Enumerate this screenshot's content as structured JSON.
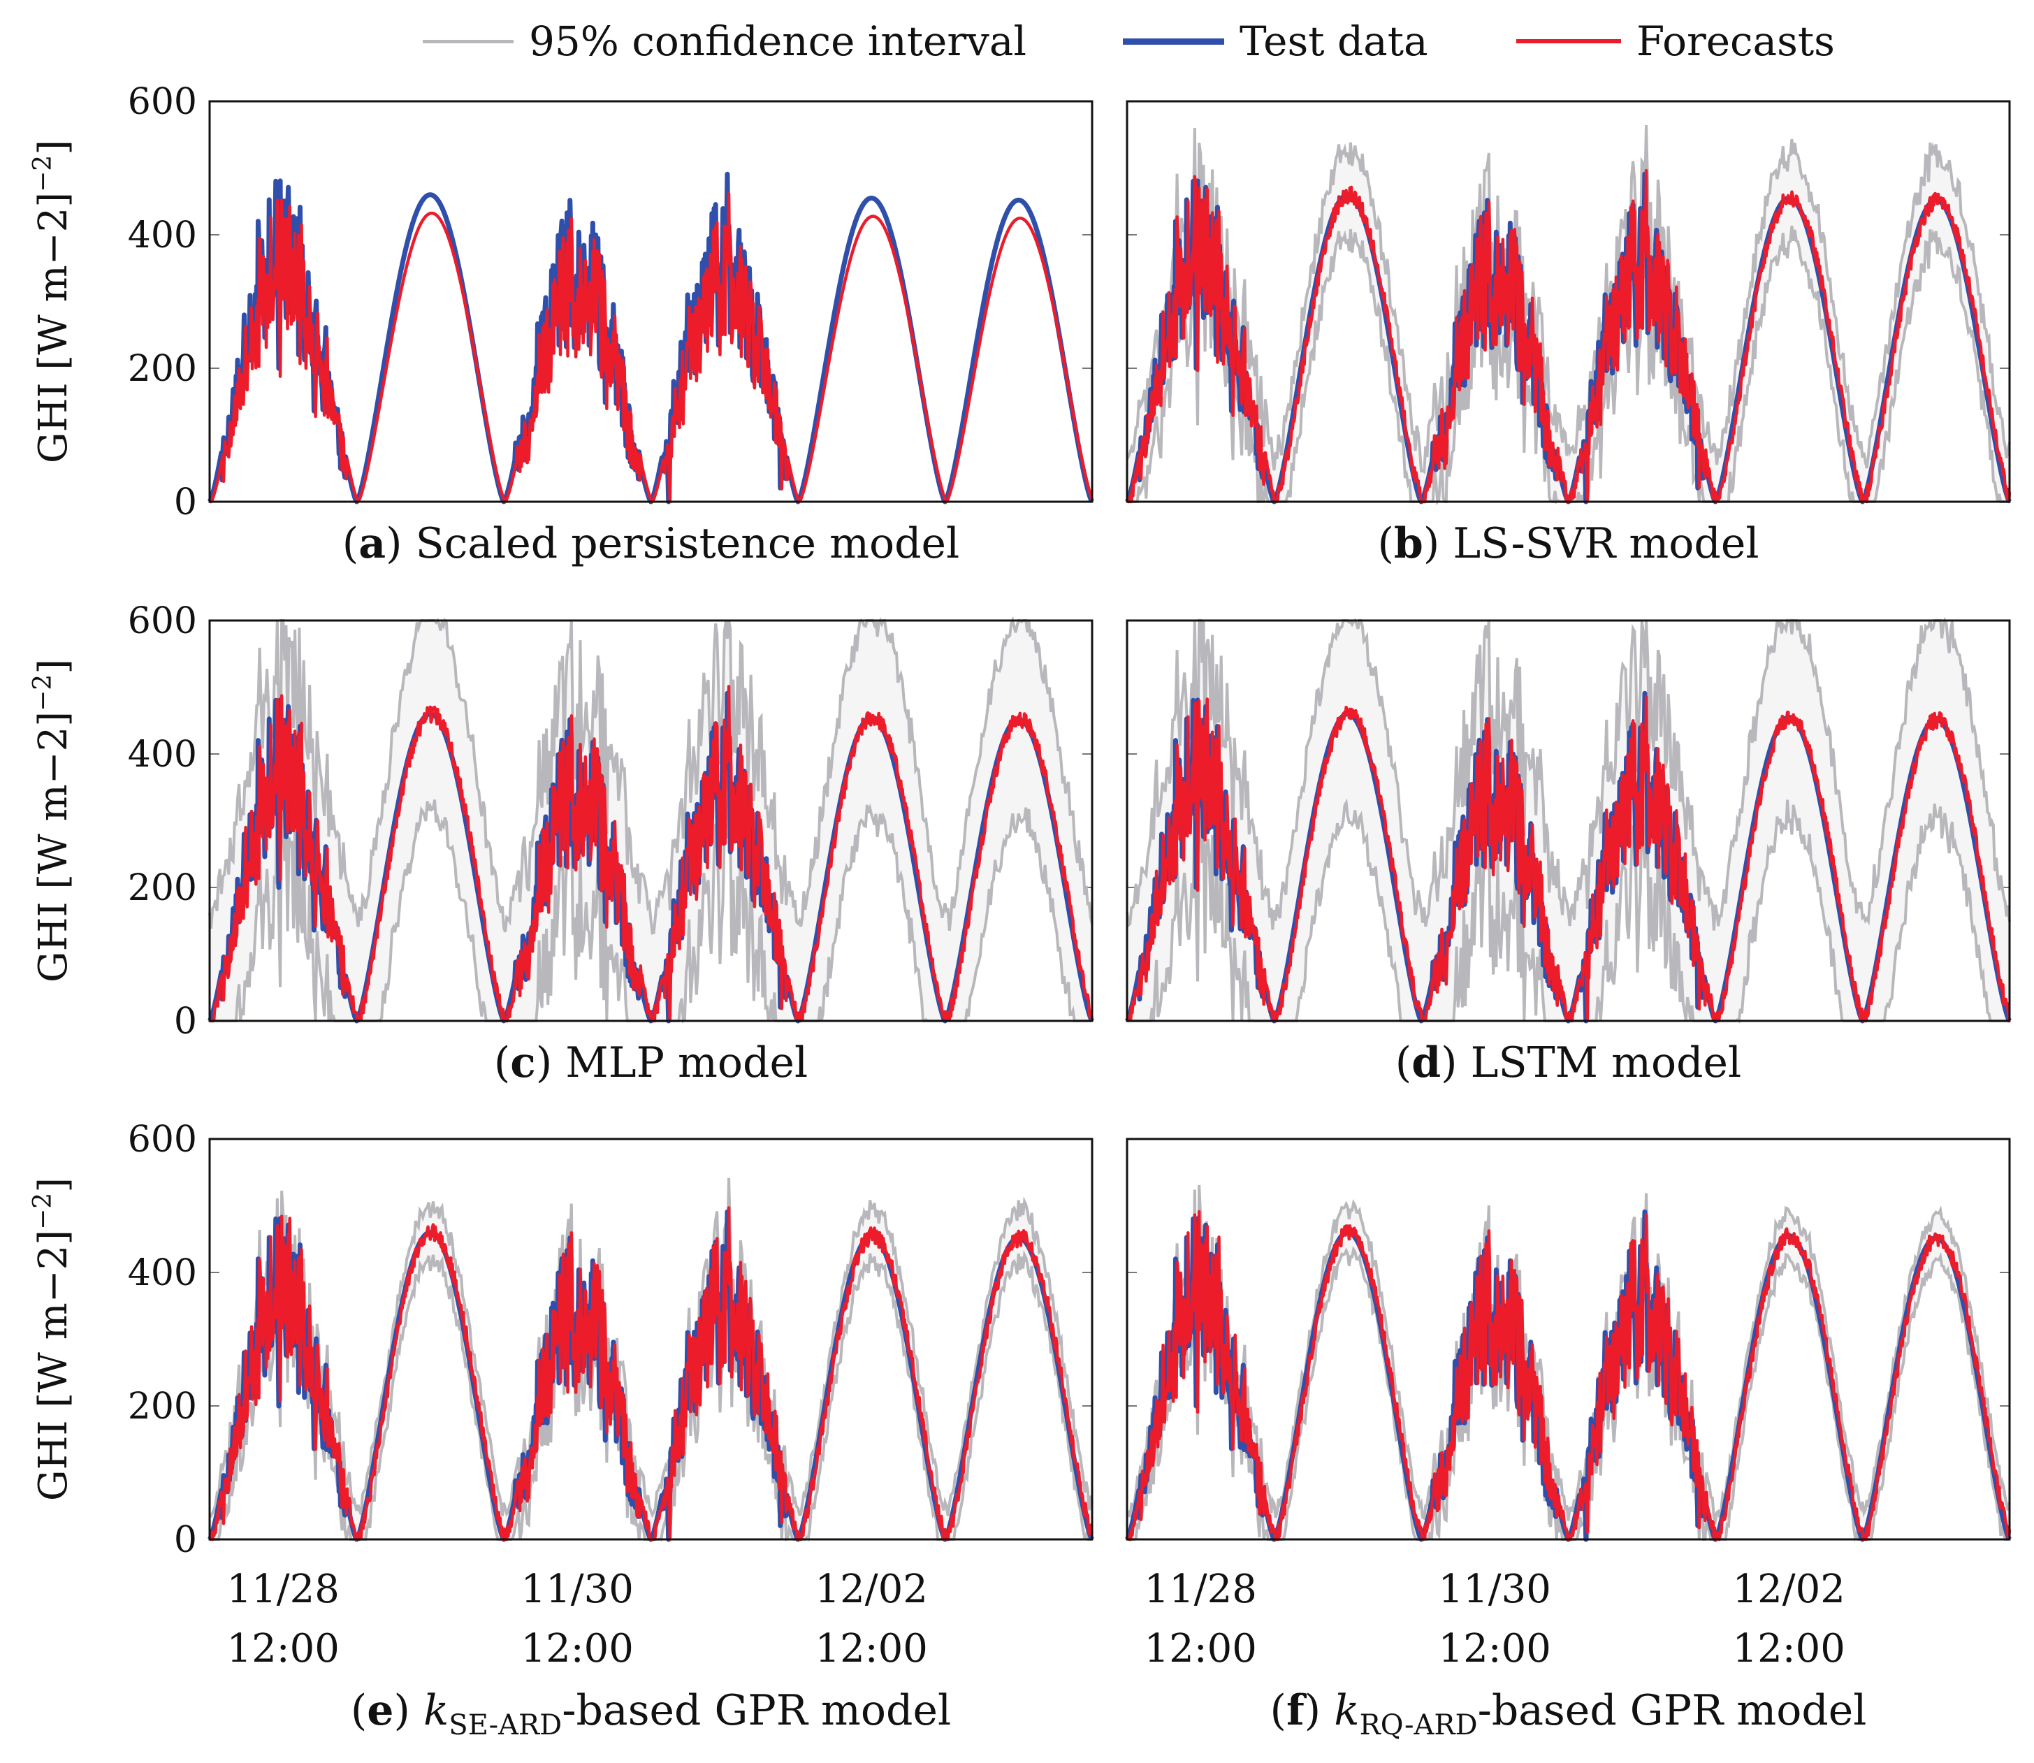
{
  "legend": [
    {
      "label": "95% confidence interval",
      "color": "#b8b8bc"
    },
    {
      "label": "Test data",
      "color": "#2f4faa"
    },
    {
      "label": "Forecasts",
      "color": "#ec1c2a"
    }
  ],
  "x_tick_labels": [
    {
      "date": "11/28",
      "time": "12:00"
    },
    {
      "date": "11/30",
      "time": "12:00"
    },
    {
      "date": "12/02",
      "time": "12:00"
    }
  ],
  "chart_data": [
    {
      "id": "a",
      "type": "line",
      "caption_bold": "a",
      "caption_text": "Scaled persistence model",
      "ylabel": "GHI [W m−2]",
      "ylim": [
        0,
        600
      ],
      "yticks": [
        "0",
        "200",
        "400",
        "600"
      ],
      "xrange_days": [
        0,
        6
      ],
      "has_ci": false,
      "series": [
        {
          "name": "Test data",
          "color": "#2f4faa"
        },
        {
          "name": "Forecasts",
          "color": "#ec1c2a"
        }
      ]
    },
    {
      "id": "b",
      "type": "line",
      "caption_bold": "b",
      "caption_text": "LS-SVR model",
      "ylabel": "",
      "ylim": [
        0,
        600
      ],
      "yticks": [],
      "xrange_days": [
        0,
        6
      ],
      "has_ci": true,
      "ci_halfwidth": 65,
      "series": [
        {
          "name": "Test data",
          "color": "#2f4faa"
        },
        {
          "name": "Forecasts",
          "color": "#ec1c2a"
        }
      ]
    },
    {
      "id": "c",
      "type": "line",
      "caption_bold": "c",
      "caption_text": "MLP model",
      "ylabel": "GHI [W m−2]",
      "ylim": [
        0,
        600
      ],
      "yticks": [
        "0",
        "200",
        "400",
        "600"
      ],
      "xrange_days": [
        0,
        6
      ],
      "has_ci": true,
      "ci_halfwidth": 150,
      "series": [
        {
          "name": "Test data",
          "color": "#2f4faa"
        },
        {
          "name": "Forecasts",
          "color": "#ec1c2a"
        }
      ]
    },
    {
      "id": "d",
      "type": "line",
      "caption_bold": "d",
      "caption_text": "LSTM model",
      "ylabel": "",
      "ylim": [
        0,
        600
      ],
      "yticks": [],
      "xrange_days": [
        0,
        6
      ],
      "has_ci": true,
      "ci_halfwidth": 150,
      "series": [
        {
          "name": "Test data",
          "color": "#2f4faa"
        },
        {
          "name": "Forecasts",
          "color": "#ec1c2a"
        }
      ]
    },
    {
      "id": "e",
      "type": "line",
      "caption_bold": "e",
      "caption_text_pre": "k",
      "caption_sub": "SE-ARD",
      "caption_text": "-based GPR model",
      "ylabel": "GHI [W m−2]",
      "ylim": [
        0,
        600
      ],
      "yticks": [
        "0",
        "200",
        "400",
        "600"
      ],
      "xrange_days": [
        0,
        6
      ],
      "has_ci": true,
      "ci_halfwidth": 40,
      "series": [
        {
          "name": "Test data",
          "color": "#2f4faa"
        },
        {
          "name": "Forecasts",
          "color": "#ec1c2a"
        }
      ]
    },
    {
      "id": "f",
      "type": "line",
      "caption_bold": "f",
      "caption_text_pre": "k",
      "caption_sub": "RQ-ARD",
      "caption_text": "-based GPR model",
      "ylabel": "",
      "ylim": [
        0,
        600
      ],
      "yticks": [],
      "xrange_days": [
        0,
        6
      ],
      "has_ci": true,
      "ci_halfwidth": 35,
      "series": [
        {
          "name": "Test data",
          "color": "#2f4faa"
        },
        {
          "name": "Forecasts",
          "color": "#ec1c2a"
        }
      ]
    }
  ],
  "daily_peaks": [
    {
      "day": 0,
      "peak": 480,
      "cloudy": true
    },
    {
      "day": 1,
      "peak": 460,
      "cloudy": false
    },
    {
      "day": 2,
      "peak": 440,
      "cloudy": true
    },
    {
      "day": 3,
      "peak": 470,
      "cloudy": true
    },
    {
      "day": 4,
      "peak": 455,
      "cloudy": false
    },
    {
      "day": 5,
      "peak": 452,
      "cloudy": false
    }
  ]
}
